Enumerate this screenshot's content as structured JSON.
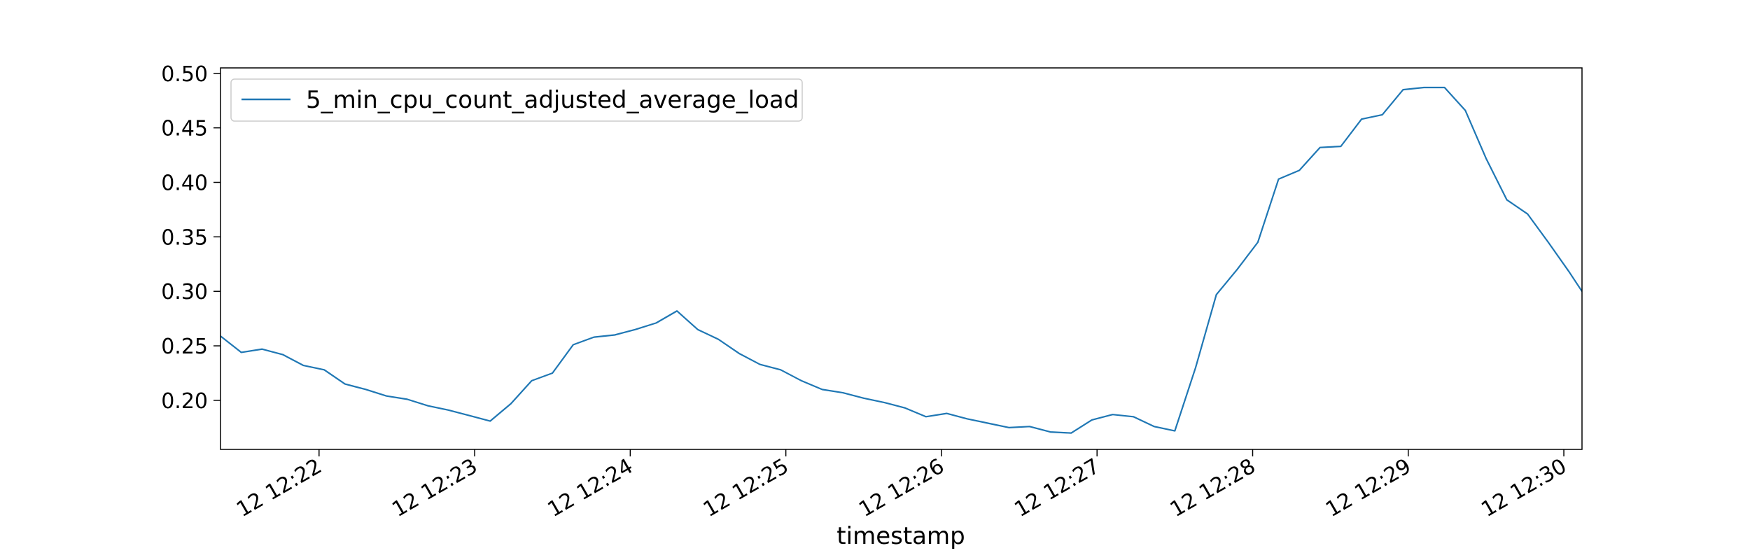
{
  "chart_data": {
    "type": "line",
    "title": "",
    "xlabel": "timestamp",
    "ylabel": "",
    "legend": {
      "placement": "upper-left"
    },
    "grid": false,
    "x_range": [
      "12:21:22",
      "12:30:07"
    ],
    "ylim": [
      0.155,
      0.505
    ],
    "x_ticks": [
      {
        "t": "12:22:00",
        "label": "12 12:22"
      },
      {
        "t": "12:23:00",
        "label": "12 12:23"
      },
      {
        "t": "12:24:00",
        "label": "12 12:24"
      },
      {
        "t": "12:25:00",
        "label": "12 12:25"
      },
      {
        "t": "12:26:00",
        "label": "12 12:26"
      },
      {
        "t": "12:27:00",
        "label": "12 12:27"
      },
      {
        "t": "12:28:00",
        "label": "12 12:28"
      },
      {
        "t": "12:29:00",
        "label": "12 12:29"
      },
      {
        "t": "12:30:00",
        "label": "12 12:30"
      }
    ],
    "y_ticks": [
      {
        "v": 0.2,
        "label": "0.20"
      },
      {
        "v": 0.25,
        "label": "0.25"
      },
      {
        "v": 0.3,
        "label": "0.30"
      },
      {
        "v": 0.35,
        "label": "0.35"
      },
      {
        "v": 0.4,
        "label": "0.40"
      },
      {
        "v": 0.45,
        "label": "0.45"
      },
      {
        "v": 0.5,
        "label": "0.50"
      }
    ],
    "series": [
      {
        "name": "5_min_cpu_count_adjusted_average_load",
        "color": "#1f77b4",
        "points": [
          [
            "12:21:22",
            0.259
          ],
          [
            "12:21:30",
            0.244
          ],
          [
            "12:21:38",
            0.247
          ],
          [
            "12:21:46",
            0.242
          ],
          [
            "12:21:54",
            0.232
          ],
          [
            "12:22:02",
            0.228
          ],
          [
            "12:22:10",
            0.215
          ],
          [
            "12:22:18",
            0.21
          ],
          [
            "12:22:26",
            0.204
          ],
          [
            "12:22:34",
            0.201
          ],
          [
            "12:22:42",
            0.195
          ],
          [
            "12:22:50",
            0.191
          ],
          [
            "12:22:58",
            0.186
          ],
          [
            "12:23:06",
            0.181
          ],
          [
            "12:23:14",
            0.197
          ],
          [
            "12:23:22",
            0.218
          ],
          [
            "12:23:30",
            0.225
          ],
          [
            "12:23:38",
            0.251
          ],
          [
            "12:23:46",
            0.258
          ],
          [
            "12:23:54",
            0.26
          ],
          [
            "12:24:02",
            0.265
          ],
          [
            "12:24:10",
            0.271
          ],
          [
            "12:24:18",
            0.282
          ],
          [
            "12:24:26",
            0.265
          ],
          [
            "12:24:34",
            0.256
          ],
          [
            "12:24:42",
            0.243
          ],
          [
            "12:24:50",
            0.233
          ],
          [
            "12:24:58",
            0.228
          ],
          [
            "12:25:06",
            0.218
          ],
          [
            "12:25:14",
            0.21
          ],
          [
            "12:25:22",
            0.207
          ],
          [
            "12:25:30",
            0.202
          ],
          [
            "12:25:38",
            0.198
          ],
          [
            "12:25:46",
            0.193
          ],
          [
            "12:25:54",
            0.185
          ],
          [
            "12:26:02",
            0.188
          ],
          [
            "12:26:10",
            0.183
          ],
          [
            "12:26:18",
            0.179
          ],
          [
            "12:26:26",
            0.175
          ],
          [
            "12:26:34",
            0.176
          ],
          [
            "12:26:42",
            0.171
          ],
          [
            "12:26:50",
            0.17
          ],
          [
            "12:26:58",
            0.182
          ],
          [
            "12:27:06",
            0.187
          ],
          [
            "12:27:14",
            0.185
          ],
          [
            "12:27:22",
            0.176
          ],
          [
            "12:27:30",
            0.172
          ],
          [
            "12:27:38",
            0.23
          ],
          [
            "12:27:46",
            0.297
          ],
          [
            "12:27:54",
            0.32
          ],
          [
            "12:28:02",
            0.345
          ],
          [
            "12:28:10",
            0.403
          ],
          [
            "12:28:18",
            0.411
          ],
          [
            "12:28:26",
            0.432
          ],
          [
            "12:28:34",
            0.433
          ],
          [
            "12:28:42",
            0.458
          ],
          [
            "12:28:50",
            0.462
          ],
          [
            "12:28:58",
            0.485
          ],
          [
            "12:29:06",
            0.487
          ],
          [
            "12:29:14",
            0.487
          ],
          [
            "12:29:22",
            0.466
          ],
          [
            "12:29:30",
            0.422
          ],
          [
            "12:29:38",
            0.384
          ],
          [
            "12:29:46",
            0.371
          ],
          [
            "12:29:54",
            0.345
          ],
          [
            "12:30:02",
            0.318
          ],
          [
            "12:30:07",
            0.3
          ]
        ]
      }
    ]
  }
}
